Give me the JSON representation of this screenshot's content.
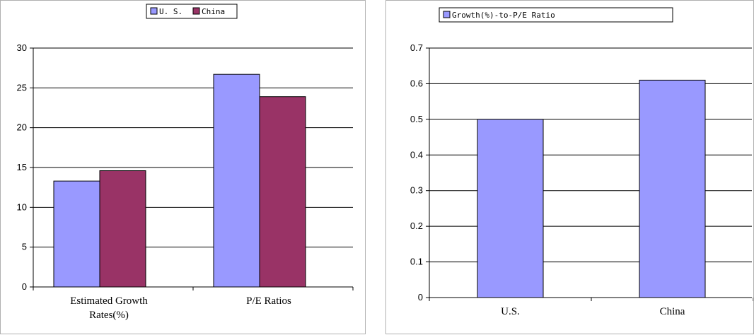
{
  "colors": {
    "us": "#9999ff",
    "china": "#993366",
    "grid": "#000000"
  },
  "chart_data": [
    {
      "type": "bar",
      "categories": [
        "Estimated Growth Rates(%)",
        "P/E Ratios"
      ],
      "category_lines": [
        [
          "Estimated Growth",
          "Rates(%)"
        ],
        [
          "P/E Ratios"
        ]
      ],
      "series": [
        {
          "name": "U. S.",
          "values": [
            13.3,
            26.7
          ]
        },
        {
          "name": "China",
          "values": [
            14.6,
            23.9
          ]
        }
      ],
      "ylim": [
        0,
        30
      ],
      "yticks": [
        "0",
        "5",
        "10",
        "15",
        "20",
        "25",
        "30"
      ],
      "grid": true,
      "legend": "top-center"
    },
    {
      "type": "bar",
      "categories": [
        "U.S.",
        "China"
      ],
      "category_lines": [
        [
          "U.S."
        ],
        [
          "China"
        ]
      ],
      "series": [
        {
          "name": "Growth(%)-to-P/E Ratio",
          "values": [
            0.5,
            0.61
          ]
        }
      ],
      "ylim": [
        0,
        0.7
      ],
      "yticks": [
        "0",
        "0.1",
        "0.2",
        "0.3",
        "0.4",
        "0.5",
        "0.6",
        "0.7"
      ],
      "grid": true,
      "legend": "top-center"
    }
  ]
}
